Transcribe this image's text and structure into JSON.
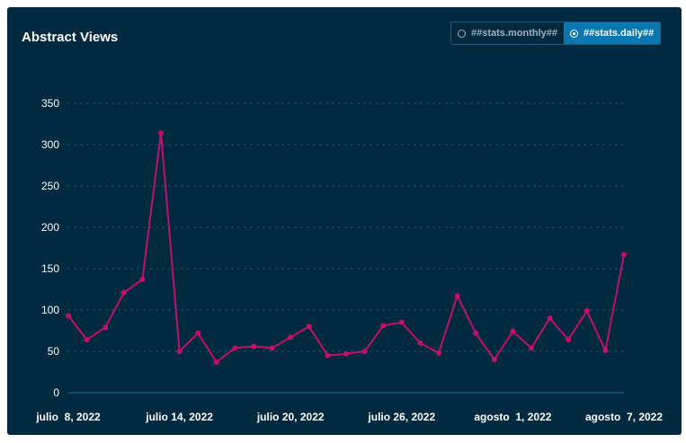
{
  "panel": {
    "title": "Abstract Views",
    "toggle": {
      "monthly_label": "##stats.monthly##",
      "daily_label": "##stats.daily##",
      "selected": "daily"
    }
  },
  "colors": {
    "background": "#002a3f",
    "line": "#c4106c",
    "axis": "#2a6fa8",
    "grid": "#2c5a6e",
    "text": "#ffffff"
  },
  "chart_data": {
    "type": "line",
    "title": "Abstract Views",
    "xlabel": "",
    "ylabel": "",
    "ylim": [
      0,
      350
    ],
    "yticks": [
      0,
      50,
      100,
      150,
      200,
      250,
      300,
      350
    ],
    "xtick_labels": [
      {
        "index": 0,
        "label": "julio  8, 2022"
      },
      {
        "index": 6,
        "label": "julio 14, 2022"
      },
      {
        "index": 12,
        "label": "julio 20, 2022"
      },
      {
        "index": 18,
        "label": "julio 26, 2022"
      },
      {
        "index": 24,
        "label": "agosto  1, 2022"
      },
      {
        "index": 30,
        "label": "agosto  7, 2022"
      }
    ],
    "grid": true,
    "series": [
      {
        "values": [
          93,
          64,
          79,
          121,
          137,
          314,
          50,
          72,
          37,
          54,
          56,
          54,
          67,
          80,
          45,
          47,
          50,
          81,
          85,
          60,
          48,
          117,
          72,
          40,
          74,
          54,
          90,
          64,
          99,
          51,
          167
        ]
      }
    ]
  }
}
